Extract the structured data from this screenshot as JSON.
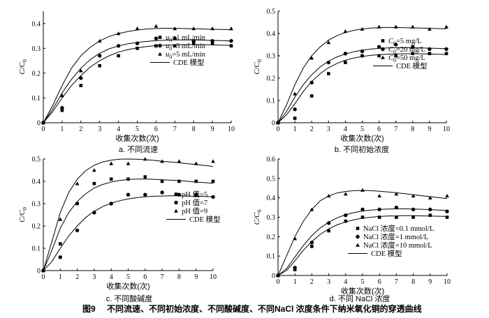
{
  "caption": {
    "number": "图9",
    "text": "不同流速、不同初始浓度、不同酸碱度、不同NaCl 浓度条件下纳米氧化铜的穿透曲线"
  },
  "chart_data": [
    {
      "type": "scatter",
      "panel_caption": "a. 不同流速",
      "xlabel": "收集次数(次)",
      "ylabel": "C/C0",
      "xlim": [
        0,
        10
      ],
      "ylim": [
        0,
        0.45
      ],
      "xticks": [
        "0",
        "1",
        "2",
        "3",
        "4",
        "5",
        "6",
        "7",
        "8",
        "9",
        "10"
      ],
      "yticks": [
        "0",
        "0.1",
        "0.2",
        "0.3",
        "0.4"
      ],
      "legend_position": "right",
      "fit_label": "CDE 模型",
      "series": [
        {
          "name": "u0=1 mL/min",
          "marker": "square",
          "x": [
            0,
            1,
            2,
            3,
            4,
            5,
            6,
            7,
            8,
            9,
            10
          ],
          "values": [
            0,
            0.05,
            0.15,
            0.23,
            0.27,
            0.3,
            0.31,
            0.31,
            0.32,
            0.32,
            0.31
          ],
          "fit_x": [
            0,
            0.5,
            1,
            1.5,
            2,
            2.5,
            3,
            3.5,
            4,
            4.5,
            5,
            5.5,
            6,
            6.5,
            7,
            7.5,
            8,
            8.5,
            9,
            9.5,
            10
          ],
          "fit": [
            0,
            0.045,
            0.1,
            0.15,
            0.19,
            0.225,
            0.25,
            0.27,
            0.285,
            0.295,
            0.302,
            0.307,
            0.311,
            0.313,
            0.314,
            0.315,
            0.315,
            0.315,
            0.314,
            0.313,
            0.312
          ]
        },
        {
          "name": "u0=3 mL/min",
          "marker": "circle",
          "x": [
            0,
            1,
            2,
            3,
            4,
            5,
            6,
            7,
            8,
            9,
            10
          ],
          "values": [
            0,
            0.06,
            0.18,
            0.27,
            0.31,
            0.32,
            0.34,
            0.34,
            0.33,
            0.33,
            0.33
          ],
          "fit_x": [
            0,
            0.5,
            1,
            1.5,
            2,
            2.5,
            3,
            3.5,
            4,
            4.5,
            5,
            5.5,
            6,
            6.5,
            7,
            7.5,
            8,
            8.5,
            9,
            9.5,
            10
          ],
          "fit": [
            0,
            0.055,
            0.12,
            0.175,
            0.22,
            0.255,
            0.28,
            0.298,
            0.31,
            0.318,
            0.324,
            0.328,
            0.331,
            0.333,
            0.334,
            0.334,
            0.334,
            0.333,
            0.332,
            0.331,
            0.33
          ]
        },
        {
          "name": "u0=5 mL/min",
          "marker": "triangle",
          "x": [
            0,
            1,
            2,
            3,
            4,
            5,
            6,
            7,
            8,
            9,
            10
          ],
          "values": [
            0,
            0.11,
            0.21,
            0.33,
            0.36,
            0.38,
            0.39,
            0.38,
            0.38,
            0.38,
            0.38
          ],
          "fit_x": [
            0,
            0.5,
            1,
            1.5,
            2,
            2.5,
            3,
            3.5,
            4,
            4.5,
            5,
            5.5,
            6,
            6.5,
            7,
            7.5,
            8,
            8.5,
            9,
            9.5,
            10
          ],
          "fit": [
            0,
            0.07,
            0.15,
            0.22,
            0.27,
            0.305,
            0.33,
            0.348,
            0.36,
            0.368,
            0.374,
            0.378,
            0.38,
            0.381,
            0.381,
            0.38,
            0.379,
            0.378,
            0.377,
            0.376,
            0.375
          ]
        }
      ]
    },
    {
      "type": "scatter",
      "panel_caption": "b. 不同初始浓度",
      "xlabel": "收集次数(次)",
      "ylabel": "C/C0",
      "xlim": [
        0,
        10
      ],
      "ylim": [
        0,
        0.5
      ],
      "xticks": [
        "0",
        "1",
        "2",
        "3",
        "4",
        "5",
        "6",
        "7",
        "8",
        "9",
        "10"
      ],
      "yticks": [
        "0",
        "0.1",
        "0.2",
        "0.3",
        "0.4",
        "0.5"
      ],
      "legend_position": "right",
      "fit_label": "CDE 模型",
      "series": [
        {
          "name": "C0=5 mg/L",
          "marker": "square",
          "x": [
            0,
            1,
            2,
            3,
            4,
            5,
            6,
            7,
            8,
            9,
            10
          ],
          "values": [
            0,
            0.02,
            0.12,
            0.22,
            0.27,
            0.3,
            0.3,
            0.3,
            0.31,
            0.31,
            0.31
          ],
          "fit_x": [
            0,
            0.5,
            1,
            1.5,
            2,
            2.5,
            3,
            3.5,
            4,
            4.5,
            5,
            5.5,
            6,
            6.5,
            7,
            7.5,
            8,
            8.5,
            9,
            9.5,
            10
          ],
          "fit": [
            0,
            0.035,
            0.085,
            0.14,
            0.185,
            0.22,
            0.247,
            0.266,
            0.28,
            0.29,
            0.297,
            0.302,
            0.305,
            0.307,
            0.308,
            0.309,
            0.309,
            0.309,
            0.308,
            0.307,
            0.306
          ]
        },
        {
          "name": "C0=20 mg/L",
          "marker": "circle",
          "x": [
            0,
            1,
            2,
            3,
            4,
            5,
            6,
            7,
            8,
            9,
            10
          ],
          "values": [
            0,
            0.06,
            0.18,
            0.27,
            0.31,
            0.32,
            0.34,
            0.35,
            0.34,
            0.33,
            0.33
          ],
          "fit_x": [
            0,
            0.5,
            1,
            1.5,
            2,
            2.5,
            3,
            3.5,
            4,
            4.5,
            5,
            5.5,
            6,
            6.5,
            7,
            7.5,
            8,
            8.5,
            9,
            9.5,
            10
          ],
          "fit": [
            0,
            0.05,
            0.115,
            0.17,
            0.215,
            0.25,
            0.276,
            0.295,
            0.308,
            0.318,
            0.325,
            0.33,
            0.333,
            0.335,
            0.336,
            0.336,
            0.336,
            0.335,
            0.334,
            0.333,
            0.332
          ]
        },
        {
          "name": "C0=50 mg/L",
          "marker": "triangle",
          "x": [
            0,
            1,
            2,
            3,
            4,
            5,
            6,
            7,
            8,
            9,
            10
          ],
          "values": [
            0,
            0.13,
            0.29,
            0.36,
            0.41,
            0.42,
            0.43,
            0.43,
            0.43,
            0.42,
            0.43
          ],
          "fit_x": [
            0,
            0.5,
            1,
            1.5,
            2,
            2.5,
            3,
            3.5,
            4,
            4.5,
            5,
            5.5,
            6,
            6.5,
            7,
            7.5,
            8,
            8.5,
            9,
            9.5,
            10
          ],
          "fit": [
            0,
            0.08,
            0.17,
            0.245,
            0.3,
            0.34,
            0.37,
            0.39,
            0.404,
            0.414,
            0.42,
            0.424,
            0.426,
            0.427,
            0.427,
            0.426,
            0.425,
            0.424,
            0.423,
            0.422,
            0.421
          ]
        }
      ]
    },
    {
      "type": "scatter",
      "panel_caption": "c. 不同酸碱度",
      "xlabel": "收集次数(次)",
      "ylabel": "C/C0",
      "xlim": [
        0,
        10
      ],
      "ylim": [
        0,
        0.5
      ],
      "xticks": [
        "0",
        "1",
        "2",
        "3",
        "4",
        "5",
        "6",
        "7",
        "8",
        "9",
        "10"
      ],
      "yticks": [
        "0",
        "0.1",
        "0.2",
        "0.3",
        "0.4",
        "0.5"
      ],
      "legend_position": "right",
      "fit_label": "CDE 模型",
      "series": [
        {
          "name": "pH 值=5",
          "marker": "square",
          "x": [
            0,
            1,
            2,
            3,
            4,
            5,
            6,
            7,
            8,
            9,
            10
          ],
          "values": [
            0,
            0.12,
            0.3,
            0.39,
            0.41,
            0.41,
            0.42,
            0.4,
            0.4,
            0.4,
            0.4
          ],
          "fit_x": [
            0,
            0.5,
            1,
            1.5,
            2,
            2.5,
            3,
            3.5,
            4,
            4.5,
            5,
            5.5,
            6,
            6.5,
            7,
            7.5,
            8,
            8.5,
            9,
            9.5,
            10
          ],
          "fit": [
            0,
            0.09,
            0.19,
            0.26,
            0.31,
            0.345,
            0.37,
            0.386,
            0.397,
            0.404,
            0.408,
            0.41,
            0.41,
            0.409,
            0.407,
            0.405,
            0.403,
            0.4,
            0.397,
            0.394,
            0.391
          ]
        },
        {
          "name": "pH 值=7",
          "marker": "circle",
          "x": [
            0,
            1,
            2,
            3,
            4,
            5,
            6,
            7,
            8,
            9,
            10
          ],
          "values": [
            0,
            0.06,
            0.18,
            0.26,
            0.3,
            0.34,
            0.34,
            0.35,
            0.34,
            0.34,
            0.33
          ],
          "fit_x": [
            0,
            0.5,
            1,
            1.5,
            2,
            2.5,
            3,
            3.5,
            4,
            4.5,
            5,
            5.5,
            6,
            6.5,
            7,
            7.5,
            8,
            8.5,
            9,
            9.5,
            10
          ],
          "fit": [
            0,
            0.04,
            0.1,
            0.155,
            0.2,
            0.238,
            0.266,
            0.287,
            0.302,
            0.313,
            0.321,
            0.327,
            0.331,
            0.333,
            0.334,
            0.335,
            0.335,
            0.334,
            0.333,
            0.332,
            0.331
          ]
        },
        {
          "name": "pH 值=9",
          "marker": "triangle",
          "x": [
            0,
            1,
            2,
            3,
            4,
            5,
            6,
            7,
            8,
            9,
            10
          ],
          "values": [
            0,
            0.23,
            0.39,
            0.45,
            0.48,
            0.48,
            0.5,
            0.49,
            0.49,
            0.48,
            0.49
          ],
          "fit_x": [
            0,
            0.5,
            1,
            1.5,
            2,
            2.5,
            3,
            3.5,
            4,
            4.5,
            5,
            5.5,
            6,
            6.5,
            7,
            7.5,
            8,
            8.5,
            9,
            9.5,
            10
          ],
          "fit": [
            0,
            0.13,
            0.26,
            0.35,
            0.41,
            0.448,
            0.472,
            0.487,
            0.495,
            0.499,
            0.5,
            0.499,
            0.497,
            0.494,
            0.49,
            0.487,
            0.483,
            0.479,
            0.475,
            0.471,
            0.467
          ]
        }
      ]
    },
    {
      "type": "scatter",
      "panel_caption": "d. 不同 NaCl 浓度",
      "xlabel": "收集次数(次)",
      "ylabel": "C/C0",
      "xlim": [
        0,
        10
      ],
      "ylim": [
        0,
        0.6
      ],
      "xticks": [
        "0",
        "1",
        "2",
        "3",
        "4",
        "5",
        "6",
        "7",
        "8",
        "9",
        "10"
      ],
      "yticks": [
        "0",
        "0.1",
        "0.2",
        "0.3",
        "0.4",
        "0.5",
        "0.6"
      ],
      "legend_position": "bottom-right",
      "fit_label": "CDE 模型",
      "series": [
        {
          "name": "NaCl 浓度=0.1 mmol/L",
          "marker": "square",
          "x": [
            0,
            1,
            2,
            3,
            4,
            5,
            6,
            7,
            8,
            9,
            10
          ],
          "values": [
            0,
            0.03,
            0.15,
            0.23,
            0.28,
            0.3,
            0.3,
            0.3,
            0.3,
            0.31,
            0.3
          ],
          "fit_x": [
            0,
            0.5,
            1,
            1.5,
            2,
            2.5,
            3,
            3.5,
            4,
            4.5,
            5,
            5.5,
            6,
            6.5,
            7,
            7.5,
            8,
            8.5,
            9,
            9.5,
            10
          ],
          "fit": [
            0,
            0.025,
            0.075,
            0.13,
            0.175,
            0.212,
            0.24,
            0.261,
            0.276,
            0.287,
            0.295,
            0.3,
            0.304,
            0.306,
            0.307,
            0.308,
            0.308,
            0.307,
            0.306,
            0.305,
            0.304
          ]
        },
        {
          "name": "NaCl 浓度=1 mmol/L",
          "marker": "circle",
          "x": [
            0,
            1,
            2,
            3,
            4,
            5,
            6,
            7,
            8,
            9,
            10
          ],
          "values": [
            0,
            0.04,
            0.17,
            0.27,
            0.31,
            0.34,
            0.34,
            0.35,
            0.34,
            0.34,
            0.33
          ],
          "fit_x": [
            0,
            0.5,
            1,
            1.5,
            2,
            2.5,
            3,
            3.5,
            4,
            4.5,
            5,
            5.5,
            6,
            6.5,
            7,
            7.5,
            8,
            8.5,
            9,
            9.5,
            10
          ],
          "fit": [
            0,
            0.035,
            0.095,
            0.155,
            0.205,
            0.245,
            0.275,
            0.297,
            0.313,
            0.324,
            0.332,
            0.337,
            0.34,
            0.342,
            0.343,
            0.343,
            0.342,
            0.341,
            0.339,
            0.337,
            0.335
          ]
        },
        {
          "name": "NaCl 浓度=10 mmol/L",
          "marker": "triangle",
          "x": [
            0,
            1,
            2,
            3,
            4,
            5,
            6,
            7,
            8,
            9,
            10
          ],
          "values": [
            0,
            0.19,
            0.34,
            0.41,
            0.42,
            0.44,
            0.41,
            0.42,
            0.41,
            0.4,
            0.41
          ],
          "fit_x": [
            0,
            0.5,
            1,
            1.5,
            2,
            2.5,
            3,
            3.5,
            4,
            4.5,
            5,
            5.5,
            6,
            6.5,
            7,
            7.5,
            8,
            8.5,
            9,
            9.5,
            10
          ],
          "fit": [
            0,
            0.1,
            0.2,
            0.28,
            0.34,
            0.385,
            0.41,
            0.425,
            0.433,
            0.437,
            0.438,
            0.437,
            0.434,
            0.43,
            0.426,
            0.421,
            0.416,
            0.411,
            0.406,
            0.401,
            0.396
          ]
        }
      ]
    }
  ]
}
